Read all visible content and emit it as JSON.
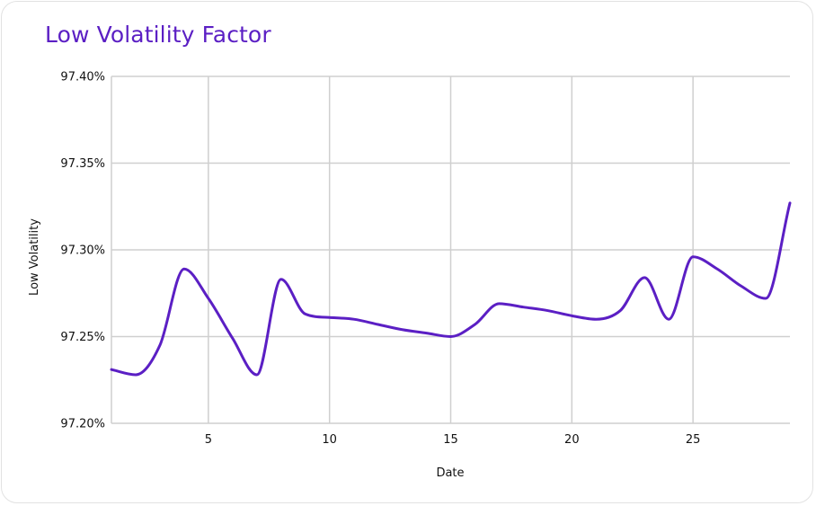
{
  "chart_data": {
    "type": "line",
    "title": "Low Volatility Factor",
    "xlabel": "Date",
    "ylabel": "Low Volatility",
    "xlim": [
      1,
      29
    ],
    "ylim": [
      97.2,
      97.4
    ],
    "x_ticks": [
      5,
      10,
      15,
      20,
      25
    ],
    "y_ticks": [
      97.2,
      97.25,
      97.3,
      97.35,
      97.4
    ],
    "y_tick_labels": [
      "97.20%",
      "97.25%",
      "97.30%",
      "97.35%",
      "97.40%"
    ],
    "grid": true,
    "legend": "none",
    "series": [
      {
        "color": "#5b1fc4",
        "x": [
          1,
          2,
          3,
          4,
          5,
          6,
          7,
          8,
          9,
          10,
          11,
          12,
          13,
          14,
          15,
          16,
          17,
          18,
          19,
          20,
          21,
          22,
          23,
          24,
          25,
          26,
          27,
          28,
          29
        ],
        "values": [
          97.231,
          97.228,
          97.245,
          97.289,
          97.272,
          97.249,
          97.228,
          97.283,
          97.263,
          97.261,
          97.26,
          97.257,
          97.254,
          97.252,
          97.25,
          97.257,
          97.269,
          97.267,
          97.265,
          97.262,
          97.26,
          97.265,
          97.284,
          97.26,
          97.296,
          97.289,
          97.279,
          97.272,
          97.327
        ]
      }
    ]
  }
}
